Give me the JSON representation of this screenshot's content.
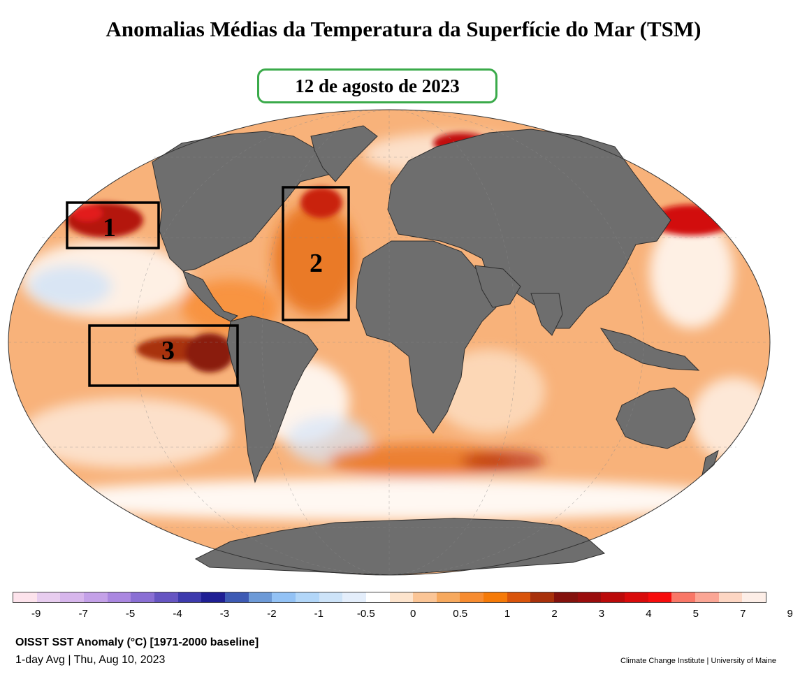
{
  "title": "Anomalias Médias da Temperatura da Superfície do Mar (TSM)",
  "date_label": "12 de agosto de 2023",
  "regions": [
    {
      "label": "1"
    },
    {
      "label": "2"
    },
    {
      "label": "3"
    }
  ],
  "colorbar": {
    "colors": [
      "#fde3ec",
      "#e8cdef",
      "#d7b6ec",
      "#c4a1e8",
      "#aa87e0",
      "#8a6fd4",
      "#6655c2",
      "#3d3aad",
      "#1f1f94",
      "#3d5ab4",
      "#6d9ad7",
      "#93c2f5",
      "#b2d6f8",
      "#cde3f8",
      "#e4eefb",
      "#ffffff",
      "#fde4cd",
      "#fbc596",
      "#f7a95e",
      "#f78c31",
      "#f57a08",
      "#d9540b",
      "#a8310b",
      "#84120d",
      "#9a0d0d",
      "#bb0a0a",
      "#d90b0b",
      "#f70c0c",
      "#f97767",
      "#fba695",
      "#fdd6c3",
      "#fdeee7"
    ],
    "ticks": [
      "-9",
      "-7",
      "-5",
      "-4",
      "-3",
      "-2",
      "-1",
      "-0.5",
      "0",
      "0.5",
      "1",
      "2",
      "3",
      "4",
      "5",
      "7",
      "9"
    ]
  },
  "footer": {
    "title": "OISST SST Anomaly (°C) [1971-2000 baseline]",
    "subtitle": "1-day Avg | Thu, Aug 10, 2023",
    "credit": "Climate Change Institute | University of Maine"
  }
}
